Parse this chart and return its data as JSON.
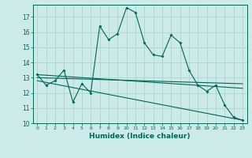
{
  "xlabel": "Humidex (Indice chaleur)",
  "bg_color": "#cceae7",
  "grid_color": "#aad4d0",
  "line_color": "#006655",
  "x_min": -0.5,
  "x_max": 23.5,
  "y_min": 10,
  "y_max": 17.8,
  "yticks": [
    10,
    11,
    12,
    13,
    14,
    15,
    16,
    17
  ],
  "xticks": [
    0,
    1,
    2,
    3,
    4,
    5,
    6,
    7,
    8,
    9,
    10,
    11,
    12,
    13,
    14,
    15,
    16,
    17,
    18,
    19,
    20,
    21,
    22,
    23
  ],
  "series1_x": [
    0,
    1,
    2,
    3,
    4,
    5,
    6,
    7,
    8,
    9,
    10,
    11,
    12,
    13,
    14,
    15,
    16,
    17,
    18,
    19,
    20,
    21,
    22,
    23
  ],
  "series1_y": [
    13.2,
    12.5,
    12.8,
    13.5,
    11.4,
    12.6,
    12.0,
    16.4,
    15.5,
    15.9,
    17.6,
    17.3,
    15.3,
    14.5,
    14.4,
    15.8,
    15.3,
    13.5,
    12.5,
    12.1,
    12.5,
    11.2,
    10.4,
    10.2
  ],
  "series2_x": [
    0,
    23
  ],
  "series2_y": [
    13.0,
    12.6
  ],
  "series3_x": [
    0,
    23
  ],
  "series3_y": [
    12.8,
    10.2
  ],
  "series4_x": [
    0,
    23
  ],
  "series4_y": [
    13.2,
    12.3
  ]
}
